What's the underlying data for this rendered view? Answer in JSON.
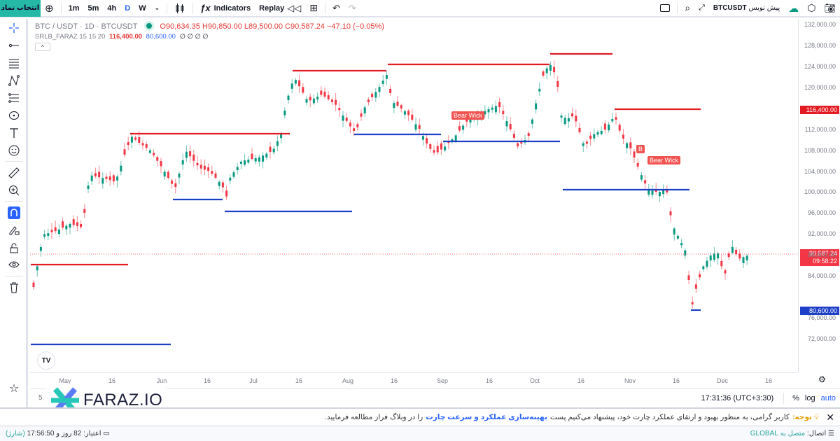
{
  "topbar": {
    "symbol_button": "انتخاب نماد",
    "timeframes": [
      "1m",
      "5m",
      "4h",
      "D",
      "W"
    ],
    "active_timeframe": "D",
    "indicators_label": "Indicators",
    "replay_label": "Replay",
    "right_symbol": "BTCUSDT",
    "right_symbol_suffix": "پیش نویس"
  },
  "legend": {
    "title": "BTC / USDT · 1D · BTCUSDT",
    "open": "O90,634.35",
    "high": "H90,850.00",
    "low": "L89,500.00",
    "close": "C90,587.24",
    "change": "−47.10 (−0.05%)",
    "indicator_name": "SRLB_FARAZ 15 15 20",
    "indicator_val1": "116,400.00",
    "indicator_val2": "80,600.00",
    "indicator_na": "∅ ∅ ∅ ∅"
  },
  "price_axis": {
    "labels": [
      "132,000.00",
      "128,000.00",
      "124,000.00",
      "120,000.00",
      "112,000.00",
      "108,000.00",
      "104,000.00",
      "100,000.00",
      "96,000.00",
      "92,000.00",
      "88,000.00",
      "84,000.00",
      "76,000.00",
      "72,000.00"
    ],
    "resistance_badge": "116,400.00",
    "support_badge": "80,600.00",
    "last_price": "90,587.24",
    "countdown": "09:58:22"
  },
  "time_axis": [
    "May",
    "16",
    "Jun",
    "16",
    "Jul",
    "16",
    "Aug",
    "16",
    "Sep",
    "16",
    "Oct",
    "16",
    "Nov",
    "16",
    "Dec",
    "16"
  ],
  "chart_labels": {
    "bear_wick_1": "Bear Wick",
    "bear_wick_2": "Bear Wick",
    "b_marker": "B"
  },
  "bottombar": {
    "clock": "17:31:36 (UTC+3:30)",
    "percent": "%",
    "log": "log",
    "auto": "auto",
    "range_hint": "5"
  },
  "notice": {
    "title": "توجه:",
    "text": "کاربر گرامی، به منظور بهبود و ارتقای عملکرد چارت خود، پیشنهاد می‌کنیم پست",
    "link": "بهینه‌سازی عملکرد و سرعت چارت",
    "tail": "را در وبلاگ فراز مطالعه فرمایید."
  },
  "status": {
    "connection_label": "اتصال:",
    "connection_value": "متصل به GLOBAL",
    "credit_label": "اعتبار: 82 روز و 17:56:50",
    "credit_link": "(شارژ)"
  },
  "watermark": "FARAZ.IO",
  "colors": {
    "up": "#089981",
    "down": "#f23645",
    "resistance": "#e31b23",
    "support": "#1e3fc7",
    "accent": "#2962ff",
    "teal": "#26b8a6"
  }
}
